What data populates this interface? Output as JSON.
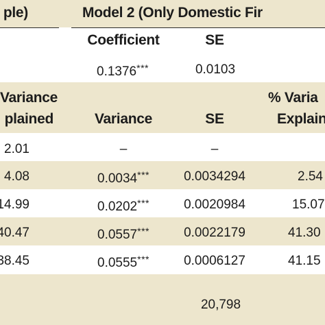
{
  "header": {
    "model1_title_fragment": "ple)",
    "model2_title": "Model 2 (Only Domestic Fir",
    "coefficient_label": "Coefficient",
    "se_label": "SE"
  },
  "coefficient_row": {
    "coefficient": "0.1376",
    "coefficient_sig": "***",
    "se": "0.0103"
  },
  "variance_header": {
    "model1_pct_line1": "Variance",
    "model1_pct_line2": "plained",
    "variance_label": "Variance",
    "se_label": "SE",
    "model2_pct_line1": "% Varia",
    "model2_pct_line2": "Explain"
  },
  "rows": [
    {
      "m1_pct": "2.01",
      "variance": "–",
      "sig": "",
      "se": "–",
      "m2_pct": ""
    },
    {
      "m1_pct": "4.08",
      "variance": "0.0034",
      "sig": "***",
      "se": "0.0034294",
      "m2_pct": "2.54"
    },
    {
      "m1_pct": "14.99",
      "variance": "0.0202",
      "sig": "***",
      "se": "0.0020984",
      "m2_pct": "15.07"
    },
    {
      "m1_pct": "40.47",
      "variance": "0.0557",
      "sig": "***",
      "se": "0.0022179",
      "m2_pct": "41.30"
    },
    {
      "m1_pct": "38.45",
      "variance": "0.0555",
      "sig": "***",
      "se": "0.0006127",
      "m2_pct": "41.15"
    }
  ],
  "footer": {
    "n_obs": "20,798"
  },
  "colors": {
    "band": "#ede6cd",
    "text": "#1c1c1c",
    "rule": "#2a2a2a"
  }
}
